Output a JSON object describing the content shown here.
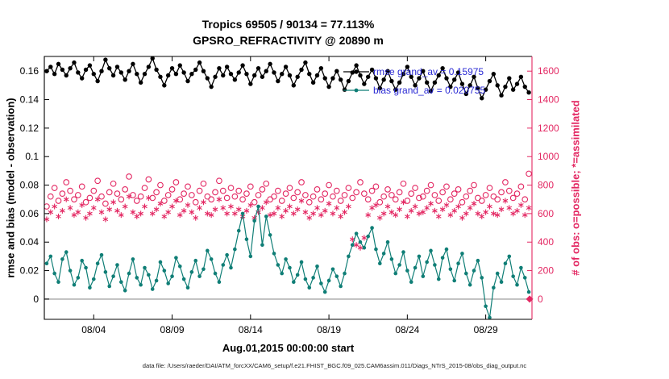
{
  "title": {
    "line1": "Tropics 69505 / 90134 = 77.113%",
    "line2": "GPSRO_REFRACTIVITY @ 20890 m"
  },
  "axes": {
    "ylabel_left": "rmse and bias (model - observation)",
    "ylabel_right": "# of obs: o=possible; *=assimilated",
    "xlabel": "Aug.01,2015 00:00:00 start"
  },
  "legend": {
    "rmse": "rmse grand_av = 0.15975",
    "bias": "bias grand_av = 0.020755"
  },
  "caption": "data file: /Users/raeder/DAI/ATM_forcXX/CAM6_setup/f.e21.FHIST_BGC.f09_025.CAM6assim.011/Diags_NTrS_2015-08/obs_diag_output.nc",
  "colors": {
    "rmse": "#000000",
    "bias": "#0f7e76",
    "obs": "#e32762",
    "legend_text": "#2a2ad4",
    "zero_line": "#b3b3b3",
    "axis": "#000000"
  },
  "chart_data": {
    "type": "line",
    "x_start_day": 1.0,
    "x_step_days": 0.25,
    "month": "08",
    "xlim_days": [
      0.85,
      31.95
    ],
    "ylim_left": [
      -0.0142,
      0.1703
    ],
    "ylim_right": [
      -142,
      1703
    ],
    "left_ticks": [
      0,
      0.02,
      0.04,
      0.06,
      0.08,
      0.1,
      0.12,
      0.14,
      0.16
    ],
    "right_ticks": [
      0,
      200,
      400,
      600,
      800,
      1000,
      1200,
      1400,
      1600
    ],
    "x_ticks": [
      {
        "day": 4,
        "label": "08/04"
      },
      {
        "day": 9,
        "label": "08/09"
      },
      {
        "day": 14,
        "label": "08/14"
      },
      {
        "day": 19,
        "label": "08/19"
      },
      {
        "day": 24,
        "label": "08/24"
      },
      {
        "day": 29,
        "label": "08/29"
      }
    ],
    "series": [
      {
        "name": "rmse",
        "axis": "left",
        "marker": "dot",
        "line": true,
        "values": [
          0.16,
          0.163,
          0.158,
          0.165,
          0.161,
          0.157,
          0.162,
          0.166,
          0.159,
          0.155,
          0.161,
          0.164,
          0.158,
          0.153,
          0.16,
          0.168,
          0.162,
          0.157,
          0.163,
          0.159,
          0.154,
          0.16,
          0.165,
          0.158,
          0.152,
          0.158,
          0.163,
          0.169,
          0.161,
          0.156,
          0.15,
          0.157,
          0.162,
          0.158,
          0.164,
          0.159,
          0.153,
          0.158,
          0.161,
          0.166,
          0.16,
          0.155,
          0.149,
          0.156,
          0.162,
          0.157,
          0.163,
          0.158,
          0.154,
          0.159,
          0.164,
          0.158,
          0.151,
          0.157,
          0.162,
          0.156,
          0.16,
          0.165,
          0.159,
          0.153,
          0.158,
          0.163,
          0.157,
          0.15,
          0.156,
          0.161,
          0.166,
          0.158,
          0.152,
          0.157,
          0.162,
          0.155,
          0.149,
          0.155,
          0.16,
          0.154,
          0.147,
          0.153,
          0.159,
          0.164,
          0.157,
          0.151,
          0.156,
          0.161,
          0.155,
          0.148,
          0.154,
          0.16,
          0.153,
          0.147,
          0.152,
          0.158,
          0.163,
          0.156,
          0.15,
          0.155,
          0.16,
          0.152,
          0.146,
          0.152,
          0.157,
          0.162,
          0.155,
          0.149,
          0.154,
          0.159,
          0.151,
          0.144,
          0.15,
          0.156,
          0.148,
          0.141,
          0.147,
          0.153,
          0.158,
          0.15,
          0.143,
          0.149,
          0.155,
          0.147,
          0.151,
          0.156,
          0.149,
          0.145
        ]
      },
      {
        "name": "bias",
        "axis": "left",
        "marker": "dot",
        "line": true,
        "values": [
          0.025,
          0.03,
          0.018,
          0.012,
          0.028,
          0.033,
          0.02,
          0.01,
          0.015,
          0.027,
          0.022,
          0.008,
          0.014,
          0.025,
          0.031,
          0.019,
          0.009,
          0.016,
          0.024,
          0.012,
          0.006,
          0.018,
          0.028,
          0.015,
          0.01,
          0.022,
          0.017,
          0.007,
          0.013,
          0.026,
          0.02,
          0.011,
          0.016,
          0.029,
          0.023,
          0.014,
          0.008,
          0.019,
          0.027,
          0.016,
          0.021,
          0.034,
          0.028,
          0.018,
          0.012,
          0.024,
          0.031,
          0.022,
          0.035,
          0.048,
          0.06,
          0.042,
          0.03,
          0.055,
          0.065,
          0.038,
          0.058,
          0.045,
          0.032,
          0.024,
          0.018,
          0.028,
          0.022,
          0.012,
          0.017,
          0.026,
          0.014,
          0.008,
          0.015,
          0.023,
          0.011,
          0.005,
          0.013,
          0.021,
          0.016,
          0.009,
          0.018,
          0.03,
          0.038,
          0.046,
          0.04,
          0.036,
          0.044,
          0.05,
          0.035,
          0.025,
          0.032,
          0.04,
          0.028,
          0.018,
          0.024,
          0.033,
          0.02,
          0.012,
          0.022,
          0.03,
          0.016,
          0.026,
          0.034,
          0.024,
          0.014,
          0.029,
          0.035,
          0.021,
          0.013,
          0.025,
          0.032,
          0.018,
          0.01,
          0.02,
          0.027,
          0.015,
          -0.005,
          -0.013,
          0.008,
          0.018,
          0.012,
          0.025,
          0.03,
          0.016,
          0.01,
          0.022,
          0.015,
          0.005
        ]
      },
      {
        "name": "possible",
        "axis": "right",
        "marker": "circle",
        "line": false,
        "values": [
          650,
          720,
          780,
          690,
          740,
          820,
          760,
          700,
          730,
          790,
          680,
          710,
          760,
          830,
          720,
          670,
          750,
          810,
          740,
          700,
          770,
          860,
          730,
          690,
          720,
          780,
          840,
          710,
          750,
          800,
          690,
          730,
          770,
          820,
          700,
          740,
          790,
          730,
          680,
          760,
          810,
          720,
          700,
          750,
          830,
          760,
          710,
          780,
          720,
          760,
          700,
          740,
          790,
          680,
          730,
          770,
          810,
          700,
          720,
          760,
          690,
          740,
          780,
          710,
          750,
          820,
          730,
          680,
          720,
          770,
          700,
          740,
          800,
          720,
          760,
          690,
          730,
          780,
          710,
          750,
          820,
          740,
          700,
          760,
          790,
          680,
          720,
          770,
          730,
          700,
          750,
          810,
          690,
          740,
          780,
          710,
          720,
          760,
          800,
          730,
          690,
          750,
          790,
          700,
          740,
          770,
          680,
          720,
          760,
          800,
          710,
          690,
          730,
          780,
          720,
          700,
          750,
          820,
          760,
          710,
          740,
          790,
          700,
          880
        ]
      },
      {
        "name": "assimilated",
        "axis": "right",
        "marker": "star",
        "line": false,
        "values": [
          560,
          610,
          650,
          580,
          620,
          700,
          640,
          590,
          610,
          660,
          570,
          600,
          640,
          700,
          610,
          560,
          630,
          680,
          620,
          590,
          650,
          720,
          610,
          580,
          600,
          650,
          710,
          600,
          630,
          670,
          580,
          610,
          650,
          690,
          590,
          620,
          660,
          610,
          570,
          640,
          680,
          600,
          590,
          630,
          700,
          640,
          600,
          650,
          600,
          630,
          580,
          620,
          660,
          570,
          610,
          640,
          680,
          590,
          600,
          640,
          580,
          620,
          650,
          600,
          630,
          690,
          610,
          570,
          600,
          640,
          590,
          620,
          670,
          600,
          640,
          580,
          610,
          650,
          420,
          380,
          360,
          430,
          590,
          640,
          660,
          570,
          600,
          650,
          610,
          590,
          630,
          680,
          580,
          620,
          650,
          600,
          610,
          640,
          670,
          620,
          580,
          630,
          660,
          590,
          620,
          650,
          570,
          600,
          640,
          670,
          600,
          580,
          610,
          650,
          600,
          590,
          630,
          690,
          640,
          600,
          620,
          660,
          590,
          640
        ]
      }
    ],
    "end_marker": {
      "day": 31.8,
      "value_right": 0
    }
  }
}
